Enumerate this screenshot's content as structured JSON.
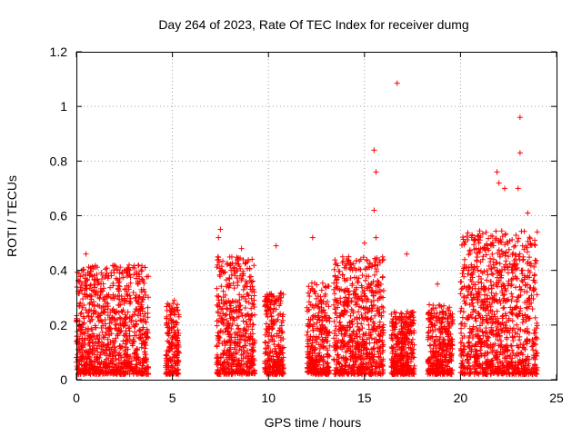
{
  "chart_data": {
    "type": "scatter",
    "title": "Day 264 of 2023, Rate Of TEC Index for receiver dumg",
    "xlabel": "GPS time / hours",
    "ylabel": "ROTI / TECUs",
    "xlim": [
      0,
      25
    ],
    "ylim": [
      0,
      1.2
    ],
    "xticks": [
      "0",
      "5",
      "10",
      "15",
      "20",
      "25"
    ],
    "yticks": [
      "0",
      "0.2",
      "0.4",
      "0.6",
      "0.8",
      "1",
      "1.2"
    ],
    "grid": true,
    "marker": "+",
    "color": "#ff0000",
    "clusters": [
      {
        "x": [
          0.0,
          3.75
        ],
        "y_max_typical": 0.42,
        "y_peak": 0.46
      },
      {
        "x": [
          4.65,
          5.35
        ],
        "y_max_typical": 0.28,
        "y_peak": 0.29
      },
      {
        "x": [
          7.3,
          9.3
        ],
        "y_max_typical": 0.45,
        "y_peak": 0.55
      },
      {
        "x": [
          9.8,
          10.8
        ],
        "y_max_typical": 0.32,
        "y_peak": 0.49
      },
      {
        "x": [
          12.0,
          13.2
        ],
        "y_max_typical": 0.36,
        "y_peak": 0.52
      },
      {
        "x": [
          13.4,
          16.0
        ],
        "y_max_typical": 0.45,
        "y_peak": 0.84
      },
      {
        "x": [
          16.4,
          17.0
        ],
        "y_max_typical": 0.25,
        "y_peak": 1.085
      },
      {
        "x": [
          16.9,
          17.6
        ],
        "y_max_typical": 0.25,
        "y_peak": 0.47
      },
      {
        "x": [
          18.3,
          19.6
        ],
        "y_max_typical": 0.28,
        "y_peak": 0.35
      },
      {
        "x": [
          20.0,
          24.0
        ],
        "y_max_typical": 0.55,
        "y_peak": 0.96
      }
    ],
    "points": [
      [
        16.7,
        1.085
      ],
      [
        23.1,
        0.96
      ],
      [
        23.1,
        0.83
      ],
      [
        15.5,
        0.84
      ],
      [
        15.6,
        0.76
      ],
      [
        15.5,
        0.62
      ],
      [
        15.6,
        0.52
      ],
      [
        21.9,
        0.76
      ],
      [
        22.0,
        0.72
      ],
      [
        22.3,
        0.7
      ],
      [
        23.0,
        0.7
      ],
      [
        23.5,
        0.61
      ],
      [
        7.5,
        0.55
      ],
      [
        7.4,
        0.52
      ],
      [
        12.3,
        0.52
      ],
      [
        10.4,
        0.49
      ],
      [
        15.0,
        0.5
      ],
      [
        17.2,
        0.46
      ],
      [
        8.6,
        0.48
      ],
      [
        0.5,
        0.46
      ],
      [
        18.8,
        0.35
      ],
      [
        5.1,
        0.29
      ],
      [
        4.7,
        0.23
      ]
    ]
  }
}
